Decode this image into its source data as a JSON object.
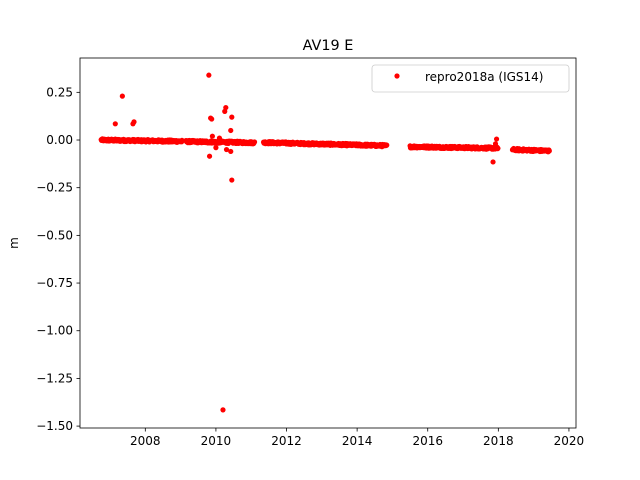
{
  "chart_data": {
    "type": "scatter",
    "title": "AV19 E",
    "xlabel": "",
    "ylabel": "m",
    "xlim": [
      2006.15,
      2020.2
    ],
    "ylim": [
      -1.51,
      0.43
    ],
    "x_ticks": [
      2008,
      2010,
      2012,
      2014,
      2016,
      2018,
      2020
    ],
    "x_tick_labels": [
      "2008",
      "2010",
      "2012",
      "2014",
      "2016",
      "2018",
      "2020"
    ],
    "y_ticks": [
      0.25,
      0.0,
      -0.25,
      -0.5,
      -0.75,
      -1.0,
      -1.25,
      -1.5
    ],
    "y_tick_labels": [
      "0.25",
      "0.00",
      "−0.25",
      "−0.50",
      "−0.75",
      "−1.00",
      "−1.25",
      "−1.50"
    ],
    "grid": false,
    "legend_position": "top-right",
    "marker_color": "#ff0000",
    "series": [
      {
        "name": "repro2018a (IGS14)",
        "color": "#ff0000",
        "segments": [
          {
            "start": 2006.75,
            "end": 2009.05,
            "y_start": 0.0,
            "y_end": -0.007
          },
          {
            "start": 2009.15,
            "end": 2011.1,
            "y_start": -0.008,
            "y_end": -0.014
          },
          {
            "start": 2011.35,
            "end": 2014.85,
            "y_start": -0.013,
            "y_end": -0.03
          },
          {
            "start": 2015.5,
            "end": 2018.0,
            "y_start": -0.035,
            "y_end": -0.043
          },
          {
            "start": 2018.4,
            "end": 2019.45,
            "y_start": -0.05,
            "y_end": -0.057
          }
        ],
        "outliers": [
          {
            "x": 2007.15,
            "y": 0.085
          },
          {
            "x": 2007.35,
            "y": 0.23
          },
          {
            "x": 2007.65,
            "y": 0.085
          },
          {
            "x": 2007.68,
            "y": 0.095
          },
          {
            "x": 2009.8,
            "y": 0.34
          },
          {
            "x": 2009.85,
            "y": 0.115
          },
          {
            "x": 2009.88,
            "y": 0.11
          },
          {
            "x": 2009.82,
            "y": -0.085
          },
          {
            "x": 2009.9,
            "y": 0.02
          },
          {
            "x": 2010.0,
            "y": -0.04
          },
          {
            "x": 2010.25,
            "y": 0.15
          },
          {
            "x": 2010.28,
            "y": 0.17
          },
          {
            "x": 2010.2,
            "y": -1.415
          },
          {
            "x": 2010.3,
            "y": -0.05
          },
          {
            "x": 2010.42,
            "y": -0.06
          },
          {
            "x": 2010.45,
            "y": 0.12
          },
          {
            "x": 2010.42,
            "y": 0.05
          },
          {
            "x": 2010.45,
            "y": -0.21
          },
          {
            "x": 2010.1,
            "y": 0.01
          },
          {
            "x": 2017.85,
            "y": -0.115
          },
          {
            "x": 2017.95,
            "y": 0.005
          },
          {
            "x": 2017.92,
            "y": -0.02
          }
        ]
      }
    ]
  }
}
